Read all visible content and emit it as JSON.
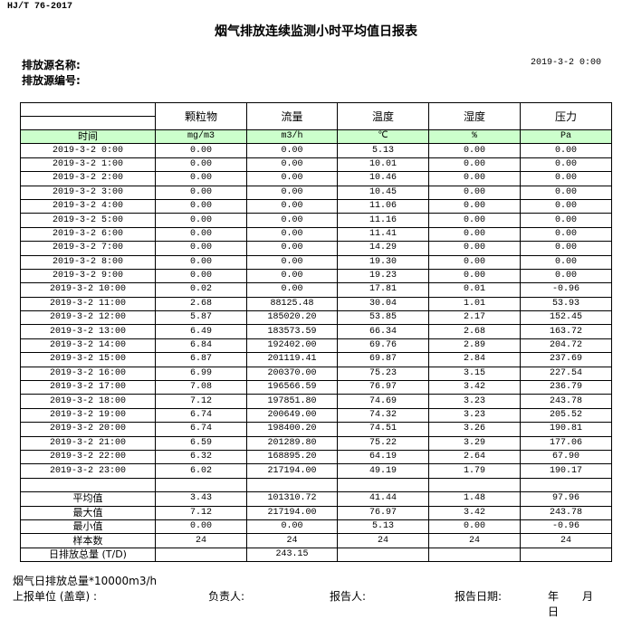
{
  "standard": "HJ/T  76-2017",
  "title": "烟气排放连续监测小时平均值日报表",
  "source_name_label": "排放源名称:",
  "source_code_label": "排放源编号:",
  "report_datetime": "2019-3-2 0:00",
  "table": {
    "columns": [
      "颗粒物",
      "流量",
      "温度",
      "湿度",
      "压力"
    ],
    "time_header": "时间",
    "units": [
      "mg/m3",
      "m3/h",
      "℃",
      "%",
      "Pa"
    ],
    "header_fill_color": "#ccffcc",
    "rows": [
      [
        "2019-3-2 0:00",
        "0.00",
        "0.00",
        "5.13",
        "0.00",
        "0.00"
      ],
      [
        "2019-3-2 1:00",
        "0.00",
        "0.00",
        "10.01",
        "0.00",
        "0.00"
      ],
      [
        "2019-3-2 2:00",
        "0.00",
        "0.00",
        "10.46",
        "0.00",
        "0.00"
      ],
      [
        "2019-3-2 3:00",
        "0.00",
        "0.00",
        "10.45",
        "0.00",
        "0.00"
      ],
      [
        "2019-3-2 4:00",
        "0.00",
        "0.00",
        "11.06",
        "0.00",
        "0.00"
      ],
      [
        "2019-3-2 5:00",
        "0.00",
        "0.00",
        "11.16",
        "0.00",
        "0.00"
      ],
      [
        "2019-3-2 6:00",
        "0.00",
        "0.00",
        "11.41",
        "0.00",
        "0.00"
      ],
      [
        "2019-3-2 7:00",
        "0.00",
        "0.00",
        "14.29",
        "0.00",
        "0.00"
      ],
      [
        "2019-3-2 8:00",
        "0.00",
        "0.00",
        "19.30",
        "0.00",
        "0.00"
      ],
      [
        "2019-3-2 9:00",
        "0.00",
        "0.00",
        "19.23",
        "0.00",
        "0.00"
      ],
      [
        "2019-3-2 10:00",
        "0.02",
        "0.00",
        "17.81",
        "0.01",
        "-0.96"
      ],
      [
        "2019-3-2 11:00",
        "2.68",
        "88125.48",
        "30.04",
        "1.01",
        "53.93"
      ],
      [
        "2019-3-2 12:00",
        "5.87",
        "185020.20",
        "53.85",
        "2.17",
        "152.45"
      ],
      [
        "2019-3-2 13:00",
        "6.49",
        "183573.59",
        "66.34",
        "2.68",
        "163.72"
      ],
      [
        "2019-3-2 14:00",
        "6.84",
        "192402.00",
        "69.76",
        "2.89",
        "204.72"
      ],
      [
        "2019-3-2 15:00",
        "6.87",
        "201119.41",
        "69.87",
        "2.84",
        "237.69"
      ],
      [
        "2019-3-2 16:00",
        "6.99",
        "200370.00",
        "75.23",
        "3.15",
        "227.54"
      ],
      [
        "2019-3-2 17:00",
        "7.08",
        "196566.59",
        "76.97",
        "3.42",
        "236.79"
      ],
      [
        "2019-3-2 18:00",
        "7.12",
        "197851.80",
        "74.69",
        "3.23",
        "243.78"
      ],
      [
        "2019-3-2 19:00",
        "6.74",
        "200649.00",
        "74.32",
        "3.23",
        "205.52"
      ],
      [
        "2019-3-2 20:00",
        "6.74",
        "198400.20",
        "74.51",
        "3.26",
        "190.81"
      ],
      [
        "2019-3-2 21:00",
        "6.59",
        "201289.80",
        "75.22",
        "3.29",
        "177.06"
      ],
      [
        "2019-3-2 22:00",
        "6.32",
        "168895.20",
        "64.19",
        "2.64",
        "67.90"
      ],
      [
        "2019-3-2 23:00",
        "6.02",
        "217194.00",
        "49.19",
        "1.79",
        "190.17"
      ]
    ],
    "summary": [
      [
        "平均值",
        "3.43",
        "101310.72",
        "41.44",
        "1.48",
        "97.96"
      ],
      [
        "最大值",
        "7.12",
        "217194.00",
        "76.97",
        "3.42",
        "243.78"
      ],
      [
        "最小值",
        "0.00",
        "0.00",
        "5.13",
        "0.00",
        "-0.96"
      ],
      [
        "样本数",
        "24",
        "24",
        "24",
        "24",
        "24"
      ],
      [
        "日排放总量 (T/D)",
        "",
        "243.15",
        "",
        "",
        ""
      ]
    ]
  },
  "footer": {
    "note": "烟气日排放总量*10000m3/h",
    "unit_label": "上报单位 (盖章) :",
    "responsible_label": "负责人:",
    "reporter_label": "报告人:",
    "report_date_label": "报告日期:",
    "year": "年",
    "month": "月",
    "day": "日"
  }
}
